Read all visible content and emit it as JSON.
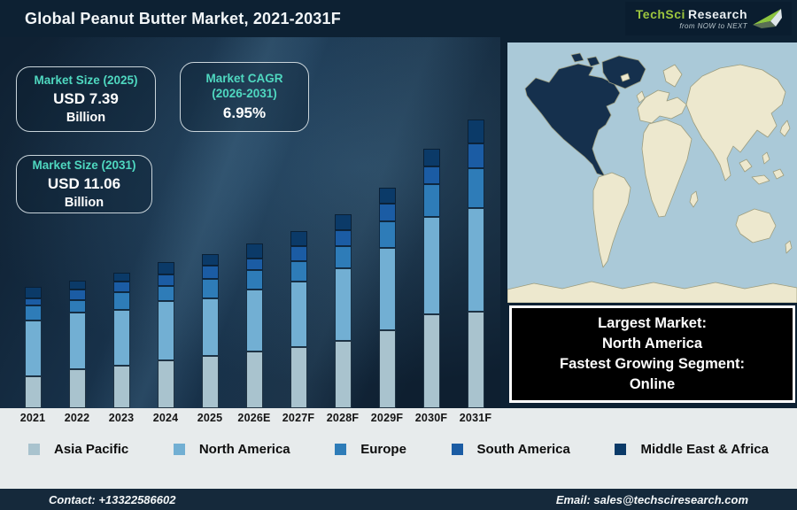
{
  "title": "Global Peanut Butter Market, 2021-2031F",
  "logo": {
    "brand": "TechSci",
    "brand2": "Research",
    "tagline": "from NOW to NEXT"
  },
  "stat_boxes": [
    {
      "label": "Market Size (2025)",
      "value": "USD 7.39",
      "unit": "Billion"
    },
    {
      "label": "Market CAGR (2026-2031)",
      "value": "6.95%",
      "unit": ""
    },
    {
      "label": "Market Size (2031)",
      "value": "USD 11.06",
      "unit": "Billion"
    }
  ],
  "chart_data": {
    "type": "bar",
    "stacked": true,
    "title": "Global Peanut Butter Market, 2021-2031F",
    "categories": [
      "2021",
      "2022",
      "2023",
      "2024",
      "2025",
      "2026E",
      "2027F",
      "2028F",
      "2029F",
      "2030F",
      "2031F"
    ],
    "series": [
      {
        "name": "Asia Pacific",
        "color": "#a9c3ce",
        "values": [
          36,
          44,
          48,
          54,
          59,
          64,
          69,
          76,
          88,
          106,
          109
        ]
      },
      {
        "name": "North America",
        "color": "#72afd3",
        "values": [
          63,
          64,
          63,
          67,
          65,
          70,
          74,
          82,
          93,
          110,
          117
        ]
      },
      {
        "name": "Europe",
        "color": "#2e7cb8",
        "values": [
          17,
          14,
          20,
          17,
          22,
          22,
          23,
          25,
          30,
          37,
          45
        ]
      },
      {
        "name": "South America",
        "color": "#1b5ca4",
        "values": [
          8,
          12,
          12,
          13,
          15,
          13,
          17,
          18,
          20,
          20,
          28
        ]
      },
      {
        "name": "Middle East & Africa",
        "color": "#0b3a68",
        "values": [
          13,
          10,
          10,
          14,
          13,
          17,
          17,
          18,
          18,
          20,
          27
        ]
      }
    ],
    "unit": "relative stacked-bar height in px (chart shows no value axis)",
    "annotations": [
      "Market Size (2025): USD 7.39 Billion",
      "Market CAGR (2026-2031): 6.95%",
      "Market Size (2031): USD 11.06 Billion"
    ],
    "legend_position": "bottom",
    "grid": false
  },
  "map_note": {
    "lines": [
      "Largest Market:",
      "North America",
      "Fastest Growing Segment:",
      "Online"
    ]
  },
  "footer": {
    "contact": "Contact: +13322586602",
    "email": "Email: sales@techsciresearch.com"
  },
  "colors": {
    "accent_teal": "#4fd8c0",
    "logo_green": "#9cc53e",
    "map_ocean": "#aac9d8",
    "map_land": "#ede8ce",
    "map_land_stroke": "#9d9d7e",
    "map_highlight": "#15304d",
    "strip_bg": "#e7ebec",
    "footer_bg": "#15293b",
    "panel_bg": "#0d2133"
  }
}
